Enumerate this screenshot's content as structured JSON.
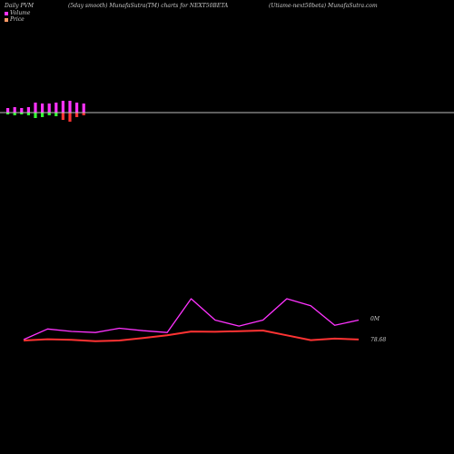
{
  "header": {
    "left": "Daily PVM",
    "middle": "(5day smooth) MunafaSutra(TM) charts for NEXT50BETA",
    "right": "(Utiame-next50beta) MunafaSutra.com"
  },
  "legend": [
    {
      "label": "Volume",
      "color": "#ff33ff"
    },
    {
      "label": "Price",
      "color": "#ff9966"
    }
  ],
  "colors": {
    "background": "#000000",
    "volume_up": "#ff33ff",
    "volume_down_green": "#33ff33",
    "volume_down_red": "#ff3333",
    "baseline": "#bbbbbb",
    "volume_line": "#ff33ff",
    "price_line": "#ff3333"
  },
  "chart_data": {
    "type": "line",
    "histogram": {
      "values_up": [
        5,
        6,
        5,
        6,
        11,
        10,
        10,
        11,
        13,
        13,
        11,
        10
      ],
      "values_down": [
        2,
        3,
        2,
        3,
        6,
        5,
        3,
        4,
        8,
        10,
        5,
        3
      ],
      "down_colors": [
        "green",
        "green",
        "green",
        "green",
        "green",
        "green",
        "green",
        "green",
        "red",
        "red",
        "red",
        "red"
      ]
    },
    "series": [
      {
        "values": [
          0.05,
          0.35,
          0.28,
          0.25,
          0.37,
          0.3,
          0.25,
          1.2,
          0.6,
          0.43,
          0.6,
          1.2,
          1.0,
          0.45,
          0.6
        ],
        "color": "#ff33ff",
        "label": "0M"
      },
      {
        "values": [
          75.0,
          75.4,
          75.2,
          74.8,
          75.0,
          75.8,
          76.6,
          77.8,
          77.7,
          77.9,
          78.1,
          76.6,
          75.1,
          75.6,
          75.3
        ],
        "color": "#ff3333",
        "label": "78.68"
      }
    ]
  }
}
